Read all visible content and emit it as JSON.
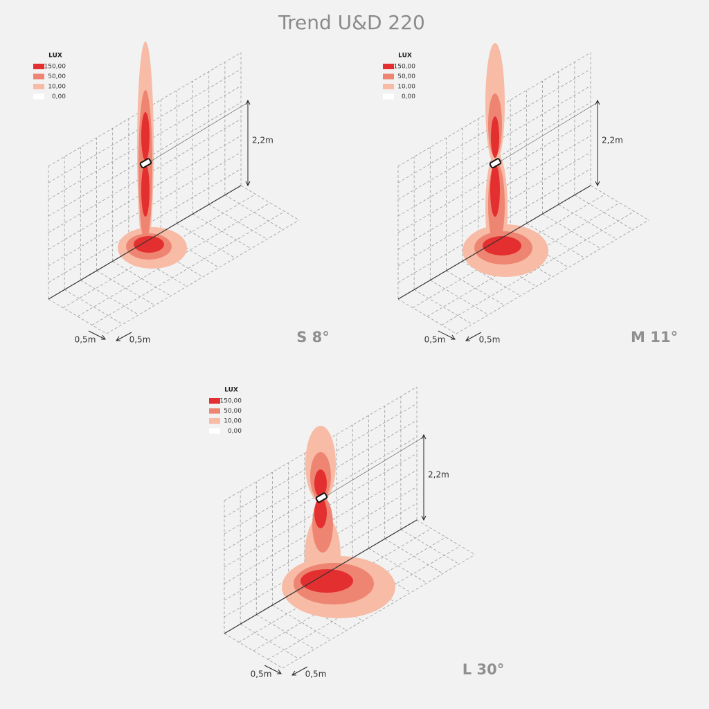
{
  "title": "Trend U&D 220",
  "panels": [
    {
      "label": "S 8°",
      "legend": {
        "title": "LUX",
        "items": [
          {
            "label": "150,00",
            "color": "#e32f2f"
          },
          {
            "label": "50,00",
            "color": "#ee8572"
          },
          {
            "label": "10,00",
            "color": "#f7bba6"
          },
          {
            "label": "0,00",
            "color": "#ffffff"
          }
        ]
      },
      "height": "2,2m",
      "spacing": [
        "0,5m",
        "0,5m"
      ]
    },
    {
      "label": "M 11°",
      "legend": {
        "title": "LUX",
        "items": [
          {
            "label": "150,00",
            "color": "#e32f2f"
          },
          {
            "label": "50,00",
            "color": "#ee8572"
          },
          {
            "label": "10,00",
            "color": "#f7bba6"
          },
          {
            "label": "0,00",
            "color": "#ffffff"
          }
        ]
      },
      "height": "2,2m",
      "spacing": [
        "0,5m",
        "0,5m"
      ]
    },
    {
      "label": "L 30°",
      "legend": {
        "title": "LUX",
        "items": [
          {
            "label": "150,00",
            "color": "#e32f2f"
          },
          {
            "label": "50,00",
            "color": "#ee8572"
          },
          {
            "label": "10,00",
            "color": "#f7bba6"
          },
          {
            "label": "0,00",
            "color": "#ffffff"
          }
        ]
      },
      "height": "2,2m",
      "spacing": [
        "0,5m",
        "0,5m"
      ]
    }
  ]
}
